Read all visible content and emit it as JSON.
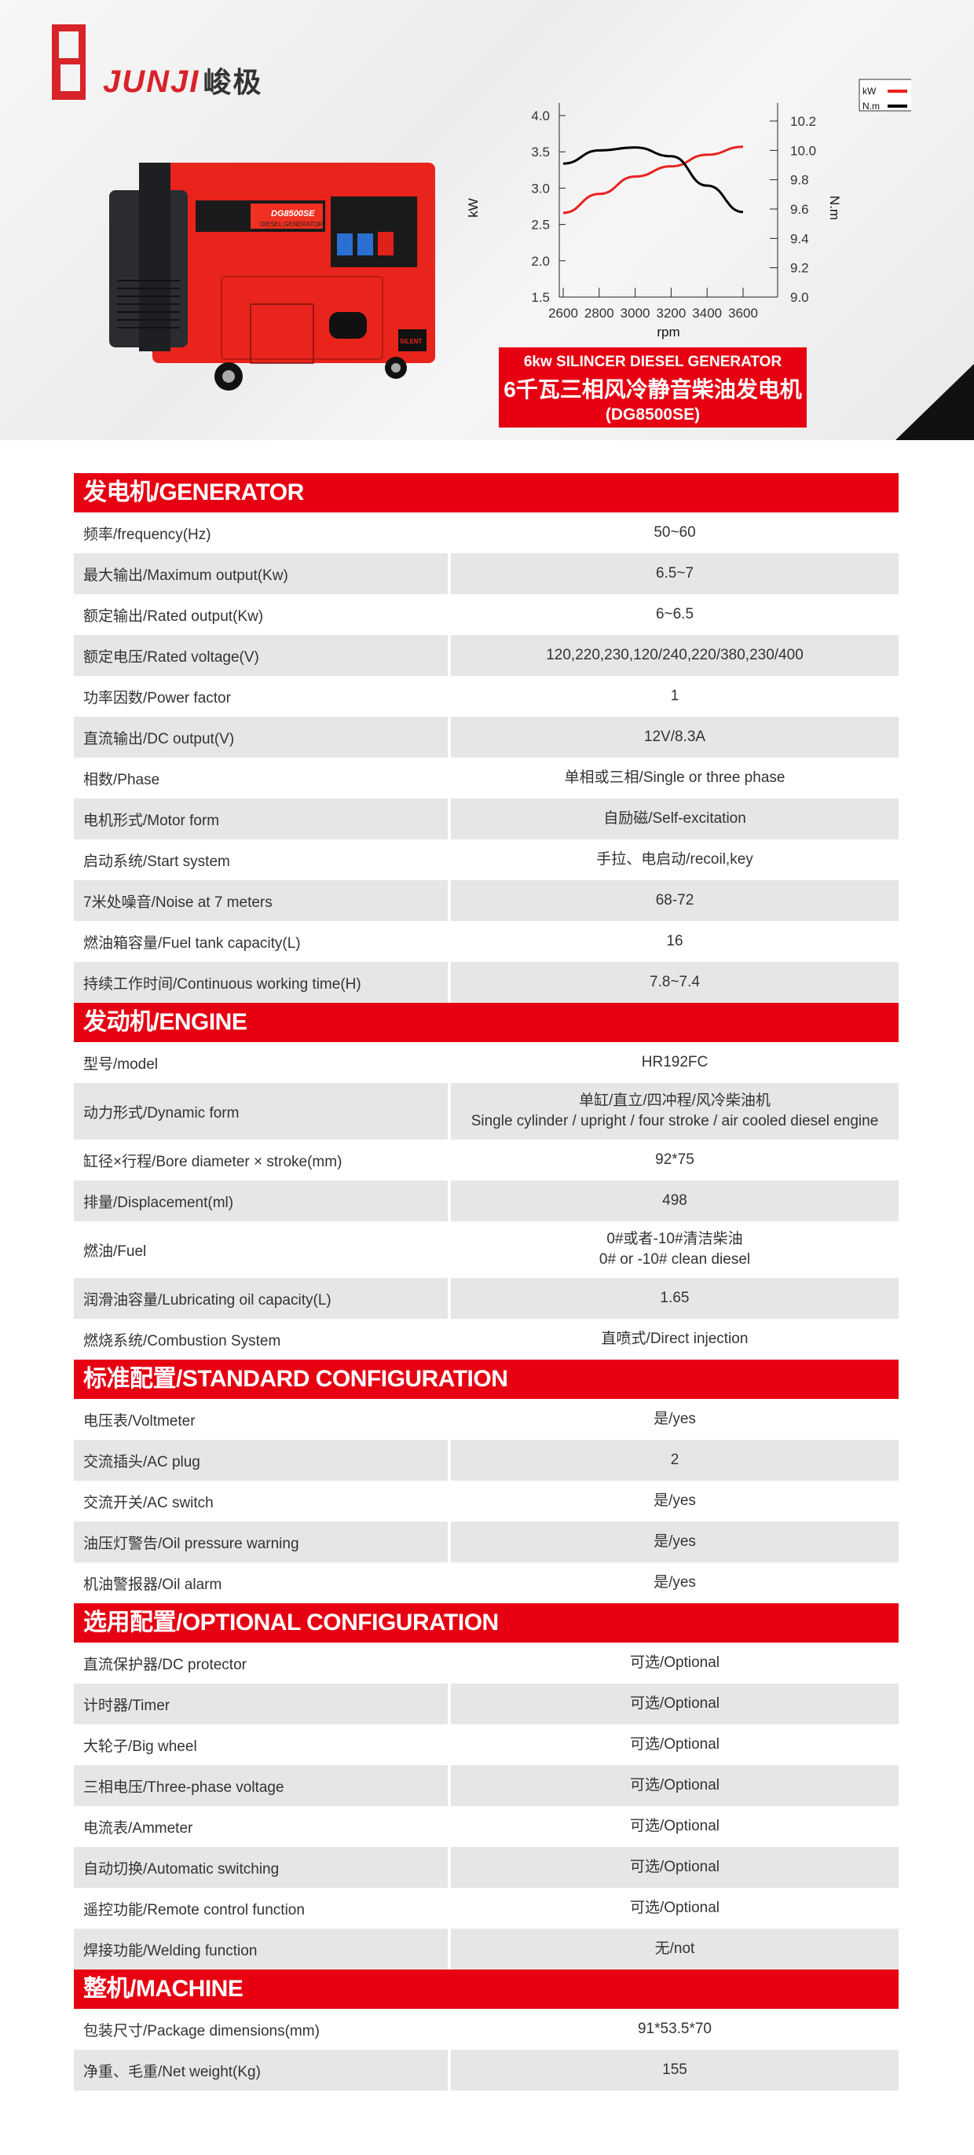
{
  "brand": {
    "name": "JUNJI",
    "name_cn": "峻极"
  },
  "product_image": {
    "model_label": "DG8500SE",
    "subtitle": "DIESEL GENERATOR",
    "badge": "SILENT"
  },
  "banner": {
    "line1": "6kw SILINCER DIESEL GENERATOR",
    "line2": "6千瓦三相风冷静音柴油发电机",
    "line3": "(DG8500SE)"
  },
  "chart_data": {
    "type": "line",
    "xlabel": "rpm",
    "ylabel_left": "kW",
    "ylabel_right": "N.m",
    "x": [
      2600,
      2800,
      3000,
      3200,
      3400,
      3600
    ],
    "xticks": [
      "2600",
      "2800",
      "3000",
      "3200",
      "3400",
      "3600"
    ],
    "yticks_left": [
      "4.0",
      "3.5",
      "3.0",
      "2.5",
      "2.0",
      "1.5"
    ],
    "yticks_right": [
      "10.2",
      "10.0",
      "9.8",
      "9.6",
      "9.4",
      "9.2",
      "9.0"
    ],
    "ylim_left": [
      1.5,
      4.0
    ],
    "ylim_right": [
      9.0,
      10.2
    ],
    "legend_position": "top-right",
    "series": [
      {
        "name": "kW",
        "axis": "left",
        "color": "#e8231f",
        "values": [
          2.66,
          2.92,
          3.16,
          3.3,
          3.46,
          3.57
        ]
      },
      {
        "name": "N.m",
        "axis": "right",
        "color": "#000000",
        "values": [
          9.91,
          10.0,
          10.02,
          9.96,
          9.76,
          9.58
        ]
      }
    ]
  },
  "sections": [
    {
      "title": "发电机/GENERATOR",
      "rows": [
        {
          "k": "频率/frequency(Hz)",
          "v": [
            "50~60"
          ]
        },
        {
          "k": "最大输出/Maximum output(Kw)",
          "v": [
            "6.5~7"
          ]
        },
        {
          "k": "额定输出/Rated output(Kw)",
          "v": [
            "6~6.5"
          ]
        },
        {
          "k": "额定电压/Rated voltage(V)",
          "v": [
            "120,220,230,120/240,220/380,230/400"
          ]
        },
        {
          "k": "功率因数/Power factor",
          "v": [
            "1"
          ]
        },
        {
          "k": "直流输出/DC output(V)",
          "v": [
            "12V/8.3A"
          ]
        },
        {
          "k": "相数/Phase",
          "v": [
            "单相或三相/Single or three phase"
          ]
        },
        {
          "k": "电机形式/Motor form",
          "v": [
            "自励磁/Self-excitation"
          ]
        },
        {
          "k": "启动系统/Start system",
          "v": [
            "手拉、电启动/recoil,key"
          ]
        },
        {
          "k": "7米处噪音/Noise at 7 meters",
          "v": [
            "68-72"
          ]
        },
        {
          "k": "燃油箱容量/Fuel tank capacity(L)",
          "v": [
            "16"
          ]
        },
        {
          "k": "持续工作时间/Continuous working time(H)",
          "v": [
            "7.8~7.4"
          ]
        }
      ]
    },
    {
      "title": "发动机/ENGINE",
      "rows": [
        {
          "k": "型号/model",
          "v": [
            "HR192FC"
          ]
        },
        {
          "k": "动力形式/Dynamic form",
          "v": [
            "单缸/直立/四冲程/风冷柴油机",
            "Single cylinder / upright / four stroke / air cooled diesel engine"
          ]
        },
        {
          "k": "缸径×行程/Bore diameter × stroke(mm)",
          "v": [
            "92*75"
          ]
        },
        {
          "k": "排量/Displacement(ml)",
          "v": [
            "498"
          ]
        },
        {
          "k": "燃油/Fuel",
          "v": [
            "0#或者-10#清洁柴油",
            "0# or -10# clean diesel"
          ]
        },
        {
          "k": "润滑油容量/Lubricating oil capacity(L)",
          "v": [
            "1.65"
          ]
        },
        {
          "k": "燃烧系统/Combustion System",
          "v": [
            "直喷式/Direct injection"
          ]
        }
      ]
    },
    {
      "title": "标准配置/STANDARD CONFIGURATION",
      "rows": [
        {
          "k": "电压表/Voltmeter",
          "v": [
            "是/yes"
          ]
        },
        {
          "k": "交流插头/AC plug",
          "v": [
            "2"
          ]
        },
        {
          "k": "交流开关/AC switch",
          "v": [
            "是/yes"
          ]
        },
        {
          "k": "油压灯警告/Oil pressure warning",
          "v": [
            "是/yes"
          ]
        },
        {
          "k": "机油警报器/Oil alarm",
          "v": [
            "是/yes"
          ]
        }
      ]
    },
    {
      "title": "选用配置/OPTIONAL CONFIGURATION",
      "rows": [
        {
          "k": "直流保护器/DC protector",
          "v": [
            "可选/Optional"
          ]
        },
        {
          "k": "计时器/Timer",
          "v": [
            "可选/Optional"
          ]
        },
        {
          "k": "大轮子/Big wheel",
          "v": [
            "可选/Optional"
          ]
        },
        {
          "k": "三相电压/Three-phase voltage",
          "v": [
            "可选/Optional"
          ]
        },
        {
          "k": "电流表/Ammeter",
          "v": [
            "可选/Optional"
          ]
        },
        {
          "k": "自动切换/Automatic switching",
          "v": [
            "可选/Optional"
          ]
        },
        {
          "k": "遥控功能/Remote control function",
          "v": [
            "可选/Optional"
          ]
        },
        {
          "k": "焊接功能/Welding function",
          "v": [
            "无/not"
          ]
        }
      ]
    },
    {
      "title": "整机/MACHINE",
      "rows": [
        {
          "k": "包装尺寸/Package dimensions(mm)",
          "v": [
            "91*53.5*70"
          ]
        },
        {
          "k": "净重、毛重/Net weight(Kg)",
          "v": [
            "155"
          ]
        }
      ]
    }
  ]
}
